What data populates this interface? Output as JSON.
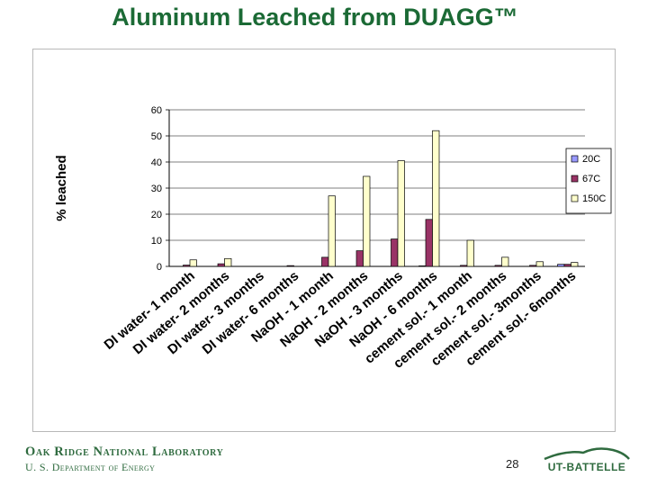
{
  "title": "Aluminum Leached from DUAGG™",
  "footer": {
    "org_line1": "Oak Ridge National Laboratory",
    "org_line2": "U. S. Department of Energy",
    "page_number": "28",
    "partner_logo_text": "UT-BATTELLE"
  },
  "colors": {
    "title": "#1b6a35",
    "series_20C": "#9999ff",
    "series_67C": "#993366",
    "series_150C": "#ffffcc"
  },
  "chart_data": {
    "type": "bar",
    "title": "",
    "xlabel": "",
    "ylabel": "% leached",
    "ylim": [
      0,
      60
    ],
    "yticks": [
      0,
      10,
      20,
      30,
      40,
      50,
      60
    ],
    "grid": true,
    "legend": "right",
    "categories": [
      "DI water- 1 month",
      "DI water- 2 months",
      "DI water- 3 months",
      "DI water- 6 months",
      "NaOH - 1 month",
      "NaOH - 2 months",
      "NaOH - 3 months",
      "NaOH - 6 months",
      "cement sol.- 1 month",
      "cement sol.- 2 months",
      "cement sol.- 3months",
      "cement sol.- 6months"
    ],
    "series": [
      {
        "name": "20C",
        "color": "#9999ff",
        "values": [
          0,
          0,
          0,
          0,
          0,
          0,
          0,
          0.2,
          0,
          0,
          0,
          0.8
        ]
      },
      {
        "name": "67C",
        "color": "#993366",
        "values": [
          0.5,
          1.0,
          0,
          0.3,
          3.5,
          6.0,
          10.5,
          18.0,
          0.4,
          0.4,
          0.4,
          0.8
        ]
      },
      {
        "name": "150C",
        "color": "#ffffcc",
        "values": [
          2.5,
          3.0,
          0,
          0,
          27.0,
          34.5,
          40.5,
          52.0,
          10.0,
          3.5,
          1.8,
          1.5
        ]
      }
    ]
  }
}
